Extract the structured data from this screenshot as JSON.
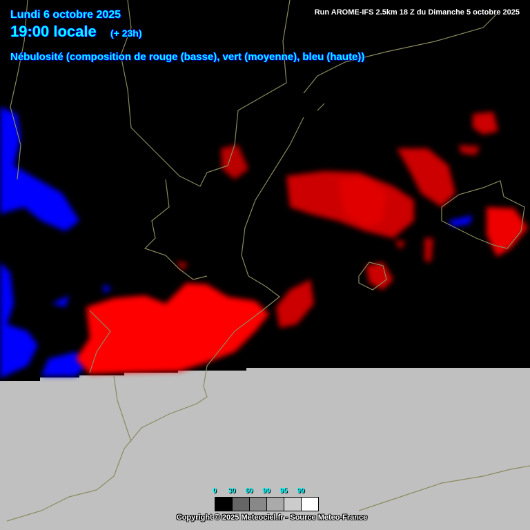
{
  "header": {
    "date": "Lundi 6 octobre 2025",
    "time": "19:00 locale",
    "lead": "(+ 23h)",
    "parameter": "Nébulosité (composition de rouge (basse), vert (moyenne), bleu (haute))",
    "run": "Run AROME-IFS 2.5km 18 Z du Dimanche 5 octobre 2025"
  },
  "legend": {
    "ticks": [
      "0",
      "30",
      "60",
      "90",
      "95",
      "99"
    ],
    "colors": [
      "#000000",
      "#666666",
      "#888888",
      "#aaaaaa",
      "#cccccc",
      "#ffffff"
    ]
  },
  "colors": {
    "low_cloud": "#ff0000",
    "high_cloud": "#0000ff",
    "outside_domain": "#c0c0c0",
    "borders": "#8a8a60"
  },
  "footer": {
    "copyright": "Copyright © 2025 Meteociel.fr - Source Meteo-France"
  }
}
